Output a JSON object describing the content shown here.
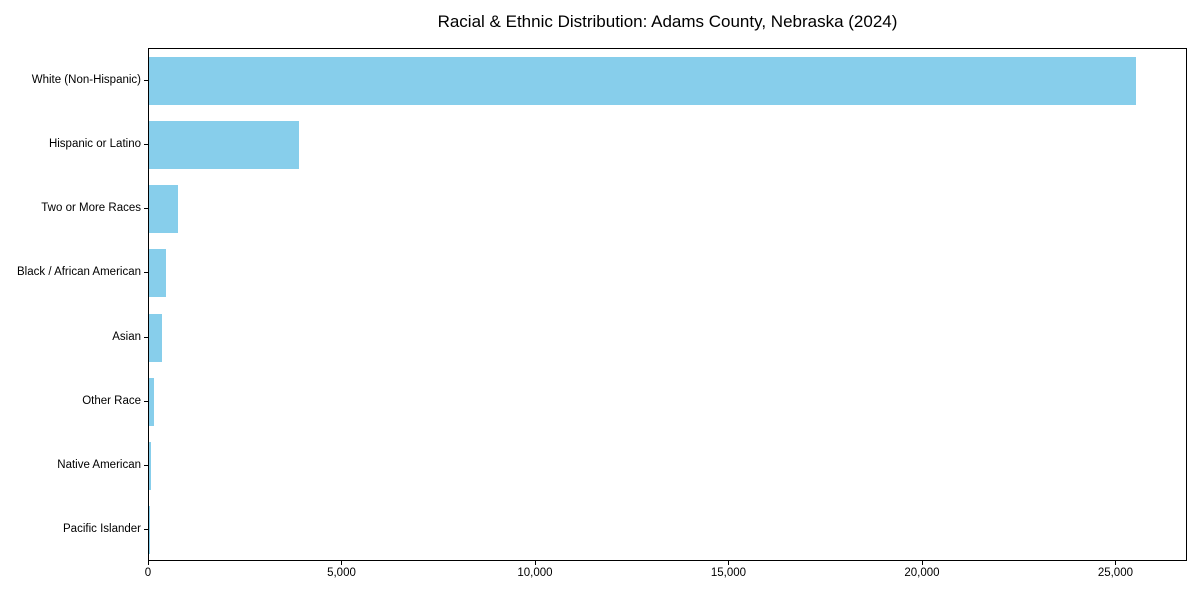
{
  "title": "Racial & Ethnic Distribution: Adams County, Nebraska (2024)",
  "chart_data": {
    "type": "bar",
    "orientation": "horizontal",
    "title": "Racial & Ethnic Distribution: Adams County, Nebraska (2024)",
    "categories": [
      "White (Non-Hispanic)",
      "Hispanic or Latino",
      "Two or More Races",
      "Black / African American",
      "Asian",
      "Other Race",
      "Native American",
      "Pacific Islander"
    ],
    "values": [
      25560,
      3880,
      750,
      450,
      335,
      120,
      50,
      15
    ],
    "bar_color": "#87CEEB",
    "xlabel": "",
    "ylabel": "",
    "xlim": [
      0,
      26850
    ],
    "x_ticks": [
      0,
      5000,
      10000,
      15000,
      20000,
      25000
    ],
    "x_tick_labels": [
      "0",
      "5,000",
      "10,000",
      "15,000",
      "20,000",
      "25,000"
    ],
    "grid": false,
    "legend": null,
    "background_color": "#ffffff",
    "text_color": "#000000"
  }
}
